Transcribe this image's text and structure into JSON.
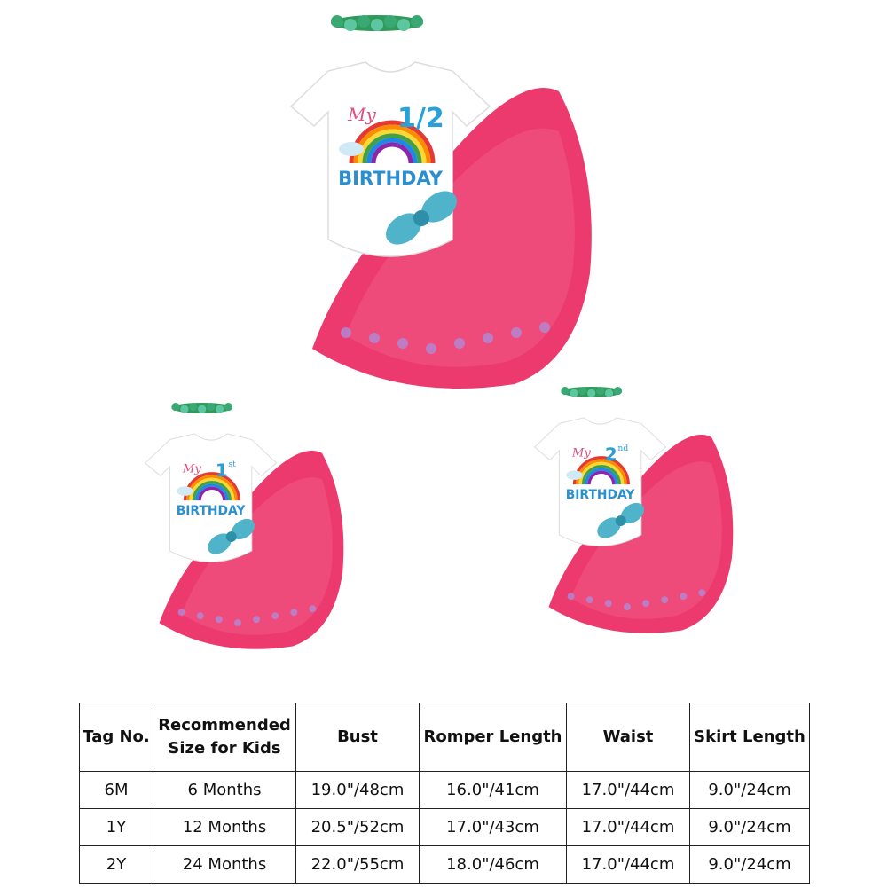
{
  "outfits": [
    {
      "label": "My",
      "number": "1/2",
      "word": "BIRTHDAY"
    },
    {
      "label": "My",
      "number": "1",
      "suffix": "st",
      "word": "BIRTHDAY"
    },
    {
      "label": "My",
      "number": "2",
      "suffix": "nd",
      "word": "BIRTHDAY"
    }
  ],
  "table": {
    "header": [
      "Tag No.",
      "Recommended Size for Kids",
      "Bust",
      "Romper Length",
      "Waist",
      "Skirt Length"
    ],
    "rows": [
      [
        "6M",
        "6 Months",
        "19.0\"/48cm",
        "16.0\"/41cm",
        "17.0\"/44cm",
        "9.0\"/24cm"
      ],
      [
        "1Y",
        "12 Months",
        "20.5\"/52cm",
        "17.0\"/43cm",
        "17.0\"/44cm",
        "9.0\"/24cm"
      ],
      [
        "2Y",
        "24 Months",
        "22.0\"/55cm",
        "18.0\"/46cm",
        "17.0\"/44cm",
        "9.0\"/24cm"
      ]
    ]
  }
}
